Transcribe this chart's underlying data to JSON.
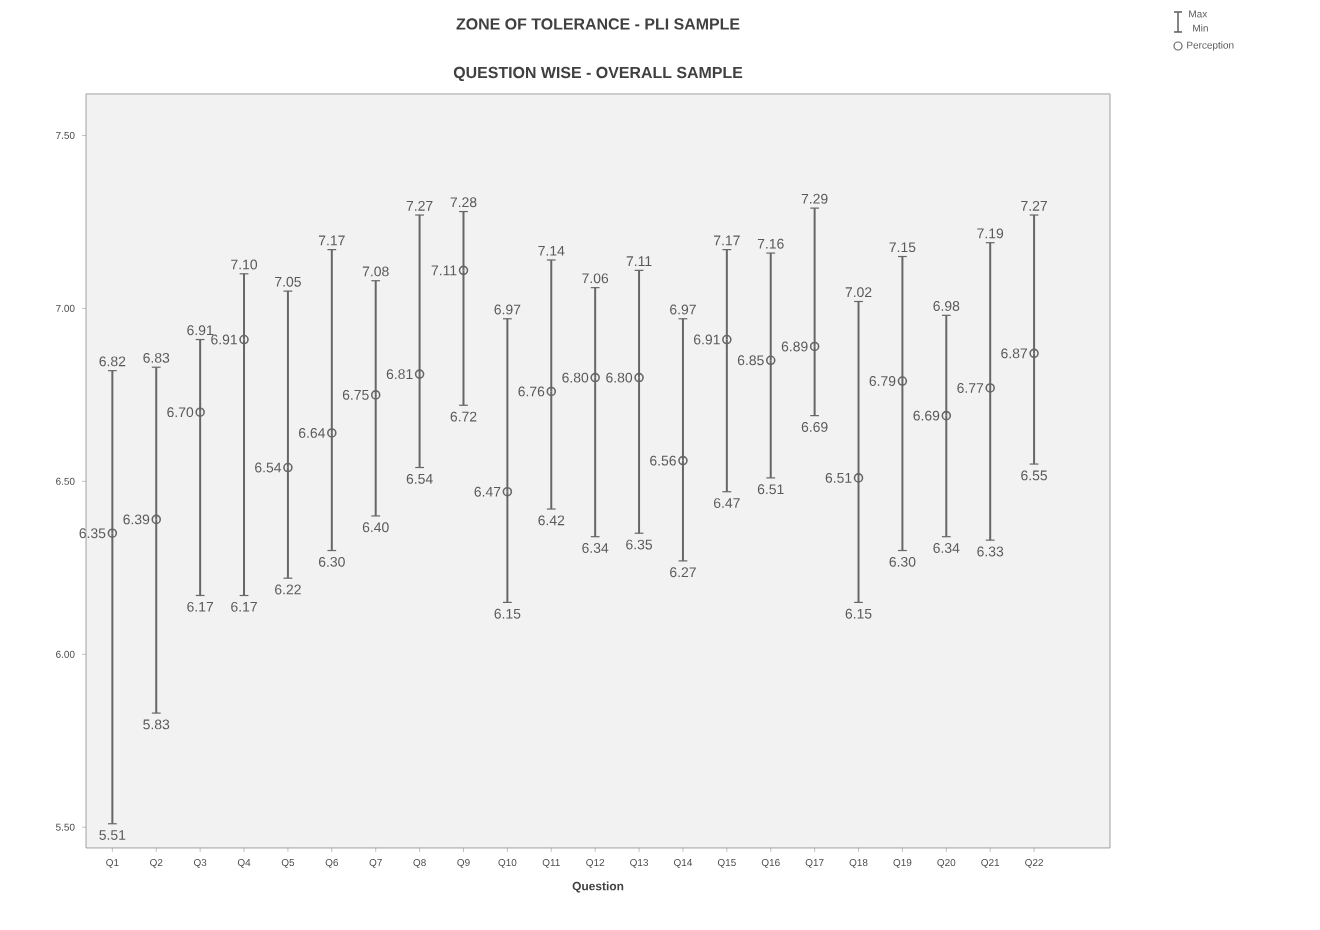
{
  "chart_data": {
    "type": "scatter",
    "title": "ZONE OF TOLERANCE - PLI SAMPLE",
    "subtitle": "QUESTION WISE - OVERALL SAMPLE",
    "xlabel": "Question",
    "categories": [
      "Q1",
      "Q2",
      "Q3",
      "Q4",
      "Q5",
      "Q6",
      "Q7",
      "Q8",
      "Q9",
      "Q10",
      "Q11",
      "Q12",
      "Q13",
      "Q14",
      "Q15",
      "Q16",
      "Q17",
      "Q18",
      "Q19",
      "Q20",
      "Q21",
      "Q22"
    ],
    "series": [
      {
        "name": "Perception",
        "color": "#666666",
        "values": [
          6.35,
          6.39,
          6.7,
          6.91,
          6.54,
          6.64,
          6.75,
          6.81,
          7.11,
          6.47,
          6.76,
          6.8,
          6.8,
          6.56,
          6.91,
          6.85,
          6.89,
          6.51,
          6.79,
          6.69,
          6.77,
          6.87
        ],
        "value_labels": [
          "6.35",
          "6.39",
          "6.70",
          "6.91",
          "6.54",
          "6.64",
          "6.75",
          "6.81",
          "7.11",
          "6.47",
          "6.76",
          "6.80",
          "6.80",
          "6.56",
          "6.91",
          "6.85",
          "6.89",
          "6.51",
          "6.79",
          "6.69",
          "6.77",
          "6.87"
        ],
        "errors": [
          [
            5.51,
            6.82
          ],
          [
            5.83,
            6.83
          ],
          [
            6.17,
            6.91
          ],
          [
            6.17,
            7.1
          ],
          [
            6.22,
            7.05
          ],
          [
            6.3,
            7.17
          ],
          [
            6.4,
            7.08
          ],
          [
            6.54,
            7.27
          ],
          [
            6.72,
            7.28
          ],
          [
            6.15,
            6.97
          ],
          [
            6.42,
            7.14
          ],
          [
            6.34,
            7.06
          ],
          [
            6.35,
            7.11
          ],
          [
            6.27,
            6.97
          ],
          [
            6.47,
            7.17
          ],
          [
            6.51,
            7.16
          ],
          [
            6.69,
            7.29
          ],
          [
            6.15,
            7.02
          ],
          [
            6.3,
            7.15
          ],
          [
            6.34,
            6.98
          ],
          [
            6.33,
            7.19
          ],
          [
            6.55,
            7.27
          ]
        ]
      }
    ],
    "ylim": [
      5.44,
      7.62
    ],
    "yticks": [
      {
        "value": 5.5,
        "label": "5.50"
      },
      {
        "value": 6.0,
        "label": "6.00"
      },
      {
        "value": 6.5,
        "label": "6.50"
      },
      {
        "value": 7.0,
        "label": "7.00"
      },
      {
        "value": 7.5,
        "label": "7.50"
      }
    ],
    "marker": "circle",
    "grid": false,
    "legend": "top right",
    "annotations": [
      "Max",
      "Min",
      {
        "text": "6.82",
        "x": "Q1",
        "y": 6.82
      },
      {
        "text": "5.51",
        "x": "Q1",
        "y": 5.51
      },
      {
        "text": "6.83",
        "x": "Q2",
        "y": 6.83
      },
      {
        "text": "5.83",
        "x": "Q2",
        "y": 5.83
      },
      {
        "text": "6.91",
        "x": "Q3",
        "y": 6.91
      },
      {
        "text": "6.17",
        "x": "Q3",
        "y": 6.17
      },
      {
        "text": "7.10",
        "x": "Q4",
        "y": 7.1
      },
      {
        "text": "6.17",
        "x": "Q4",
        "y": 6.17
      },
      {
        "text": "7.05",
        "x": "Q5",
        "y": 7.05
      },
      {
        "text": "6.22",
        "x": "Q5",
        "y": 6.22
      },
      {
        "text": "7.17",
        "x": "Q6",
        "y": 7.17
      },
      {
        "text": "6.30",
        "x": "Q6",
        "y": 6.3
      },
      {
        "text": "7.08",
        "x": "Q7",
        "y": 7.08
      },
      {
        "text": "6.40",
        "x": "Q7",
        "y": 6.4
      },
      {
        "text": "7.27",
        "x": "Q8",
        "y": 7.27
      },
      {
        "text": "6.54",
        "x": "Q8",
        "y": 6.54
      },
      {
        "text": "7.28",
        "x": "Q9",
        "y": 7.28
      },
      {
        "text": "6.72",
        "x": "Q9",
        "y": 6.72
      },
      {
        "text": "6.97",
        "x": "Q10",
        "y": 6.97
      },
      {
        "text": "6.15",
        "x": "Q10",
        "y": 6.15
      },
      {
        "text": "7.14",
        "x": "Q11",
        "y": 7.14
      },
      {
        "text": "6.42",
        "x": "Q11",
        "y": 6.42
      },
      {
        "text": "7.06",
        "x": "Q12",
        "y": 7.06
      },
      {
        "text": "6.34",
        "x": "Q12",
        "y": 6.34
      },
      {
        "text": "7.11",
        "x": "Q13",
        "y": 7.11
      },
      {
        "text": "6.35",
        "x": "Q13",
        "y": 6.35
      },
      {
        "text": "6.97",
        "x": "Q14",
        "y": 6.97
      },
      {
        "text": "6.27",
        "x": "Q14",
        "y": 6.27
      },
      {
        "text": "7.17",
        "x": "Q15",
        "y": 7.17
      },
      {
        "text": "6.47",
        "x": "Q15",
        "y": 6.47
      },
      {
        "text": "7.16",
        "x": "Q16",
        "y": 7.16
      },
      {
        "text": "6.51",
        "x": "Q16",
        "y": 6.51
      },
      {
        "text": "7.29",
        "x": "Q17",
        "y": 7.29
      },
      {
        "text": "6.69",
        "x": "Q17",
        "y": 6.69
      },
      {
        "text": "7.02",
        "x": "Q18",
        "y": 7.02
      },
      {
        "text": "6.15",
        "x": "Q18",
        "y": 6.15
      },
      {
        "text": "7.15",
        "x": "Q19",
        "y": 7.15
      },
      {
        "text": "6.30",
        "x": "Q19",
        "y": 6.3
      },
      {
        "text": "6.98",
        "x": "Q20",
        "y": 6.98
      },
      {
        "text": "6.34",
        "x": "Q20",
        "y": 6.34
      },
      {
        "text": "7.19",
        "x": "Q21",
        "y": 7.19
      },
      {
        "text": "6.33",
        "x": "Q21",
        "y": 6.33
      },
      {
        "text": "7.27",
        "x": "Q22",
        "y": 7.27
      },
      {
        "text": "6.55",
        "x": "Q22",
        "y": 6.55
      }
    ]
  }
}
